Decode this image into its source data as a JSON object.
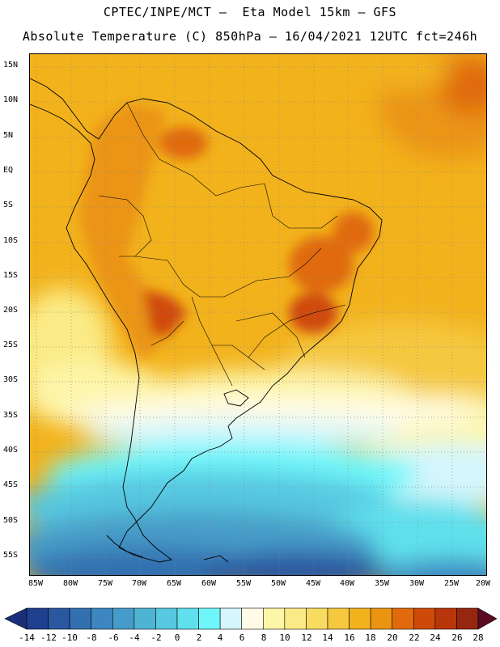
{
  "header": {
    "line1": "CPTEC/INPE/MCT –  Eta Model 15km – GFS",
    "line2": "Absolute Temperature (C) 850hPa – 16/04/2021 12UTC fct=246h"
  },
  "axes": {
    "lat_labels": [
      "15N",
      "10N",
      "5N",
      "EQ",
      "5S",
      "10S",
      "15S",
      "20S",
      "25S",
      "30S",
      "35S",
      "40S",
      "45S",
      "50S",
      "55S"
    ],
    "lon_labels": [
      "85W",
      "80W",
      "75W",
      "70W",
      "65W",
      "60W",
      "55W",
      "50W",
      "45W",
      "40W",
      "35W",
      "30W",
      "25W",
      "20W"
    ]
  },
  "colorbar": {
    "labels": [
      "-14",
      "-12",
      "-10",
      "-8",
      "-6",
      "-4",
      "-2",
      "0",
      "2",
      "4",
      "6",
      "8",
      "10",
      "12",
      "14",
      "16",
      "18",
      "20",
      "22",
      "24",
      "26",
      "28"
    ],
    "colors": [
      "#1f3f8f",
      "#2a57a0",
      "#3370b0",
      "#3d86c0",
      "#469cc8",
      "#4fb4d4",
      "#57c8e0",
      "#5fe0ec",
      "#6ff6fa",
      "#d4f6fc",
      "#fffbe6",
      "#fdf5a8",
      "#fbeb86",
      "#f8dc62",
      "#f5c840",
      "#f2b21c",
      "#eb9412",
      "#e06a0c",
      "#cf4a08",
      "#b8360a",
      "#952610",
      "#6b1a10"
    ],
    "under_color": "#1a2f7a",
    "over_color": "#5a0b22"
  }
}
